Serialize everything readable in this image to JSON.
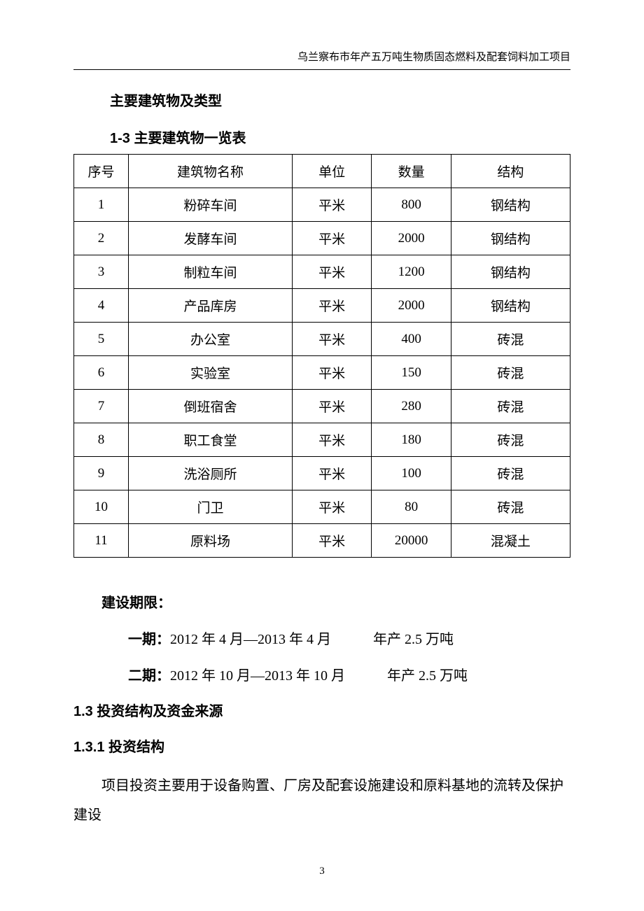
{
  "header": {
    "title": "乌兰察布市年产五万吨生物质固态燃料及配套饲料加工项目"
  },
  "section_title": "主要建筑物及类型",
  "table": {
    "title": "1-3  主要建筑物一览表",
    "columns": [
      "序号",
      "建筑物名称",
      "单位",
      "数量",
      "结构"
    ],
    "rows": [
      [
        "1",
        "粉碎车间",
        "平米",
        "800",
        "钢结构"
      ],
      [
        "2",
        "发酵车间",
        "平米",
        "2000",
        "钢结构"
      ],
      [
        "3",
        "制粒车间",
        "平米",
        "1200",
        "钢结构"
      ],
      [
        "4",
        "产品库房",
        "平米",
        "2000",
        "钢结构"
      ],
      [
        "5",
        "办公室",
        "平米",
        "400",
        "砖混"
      ],
      [
        "6",
        "实验室",
        "平米",
        "150",
        "砖混"
      ],
      [
        "7",
        "倒班宿舍",
        "平米",
        "280",
        "砖混"
      ],
      [
        "8",
        "职工食堂",
        "平米",
        "180",
        "砖混"
      ],
      [
        "9",
        "洗浴厕所",
        "平米",
        "100",
        "砖混"
      ],
      [
        "10",
        "门卫",
        "平米",
        "80",
        "砖混"
      ],
      [
        "11",
        "原料场",
        "平米",
        "20000",
        "混凝土"
      ]
    ]
  },
  "construction_period": {
    "heading": "建设期限：",
    "phase1_label": "一期：",
    "phase1_text": "2012 年  4  月—2013 年  4  月",
    "phase1_output": "年产 2.5 万吨",
    "phase2_label": "二期：",
    "phase2_text": "2012 年 10 月—2013 年 10 月",
    "phase2_output": "年产 2.5 万吨"
  },
  "section_1_3": {
    "heading": "1.3  投资结构及资金来源"
  },
  "section_1_3_1": {
    "heading": "1.3.1  投资结构",
    "body": "项目投资主要用于设备购置、厂房及配套设施建设和原料基地的流转及保护建设"
  },
  "page_number": "3"
}
